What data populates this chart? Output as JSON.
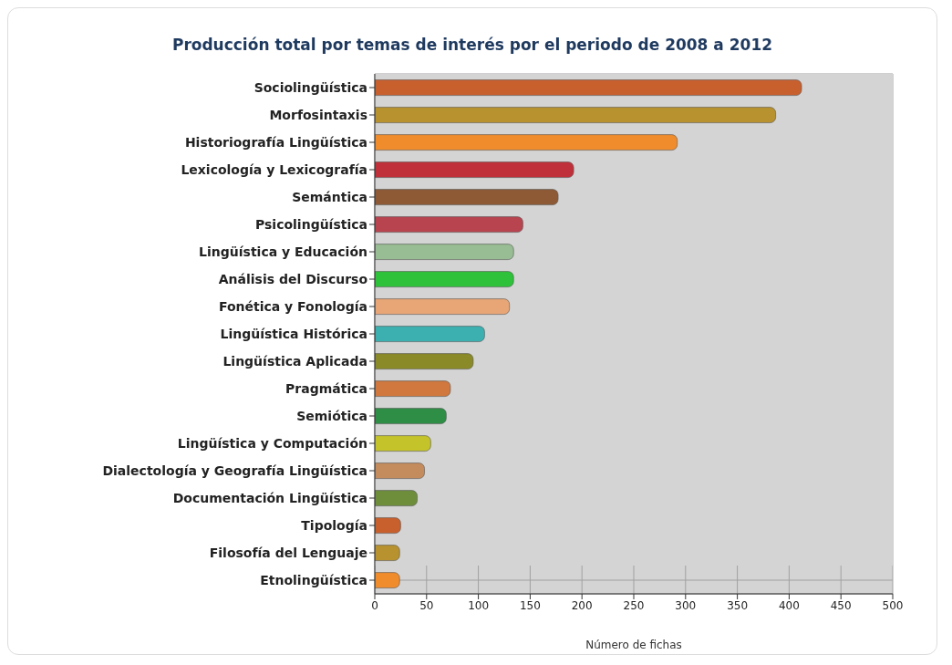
{
  "chart_data": {
    "type": "bar",
    "orientation": "horizontal",
    "title": "Producción total por temas de interés por el periodo de 2008 a 2012",
    "xlabel": "Número de fichas",
    "categories": [
      "Sociolingüística",
      "Morfosintaxis",
      "Historiografía Lingüística",
      "Lexicología y Lexicografía",
      "Semántica",
      "Psicolingüística",
      "Lingüística y Educación",
      "Análisis del Discurso",
      "Fonética y Fonología",
      "Lingüística Histórica",
      "Lingüística Aplicada",
      "Pragmática",
      "Semiótica",
      "Lingüística y Computación",
      "Dialectología y Geografía Lingüística",
      "Documentación Lingüística",
      "Tipología",
      "Filosofía del Lenguaje",
      "Etnolingüística"
    ],
    "values": [
      412,
      387,
      292,
      192,
      177,
      143,
      134,
      134,
      130,
      106,
      95,
      73,
      69,
      54,
      48,
      41,
      25,
      24,
      24
    ],
    "colors": [
      "#c8602e",
      "#b8922e",
      "#f08c2c",
      "#c0303a",
      "#8e5a36",
      "#b84450",
      "#98bc94",
      "#2ec23a",
      "#e8a676",
      "#3cb0b0",
      "#8a8a28",
      "#d0783e",
      "#2e8e46",
      "#c4c42a",
      "#c48c5c",
      "#6e8e3c",
      "#c8602e",
      "#b8922e",
      "#f08c2c"
    ],
    "xlim": [
      0,
      500
    ],
    "xticks": [
      0,
      50,
      100,
      150,
      200,
      250,
      300,
      350,
      400,
      450,
      500
    ],
    "grid": true
  }
}
